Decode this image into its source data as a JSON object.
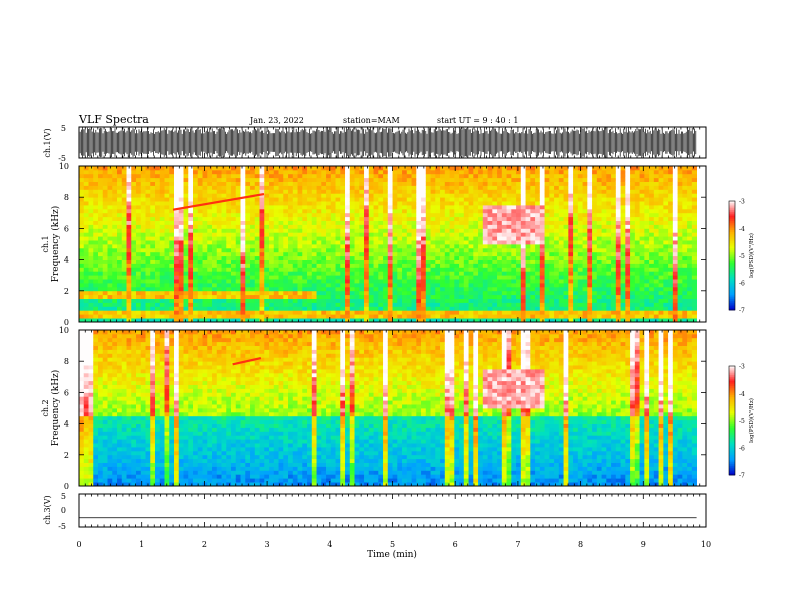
{
  "header": {
    "title": "VLF Spectra",
    "date": "Jan. 23, 2022",
    "station": "station=MAM",
    "start": "start  UT =  9 : 40 : 1"
  },
  "chart_data": [
    {
      "type": "line",
      "panel": "ch1-waveform",
      "ylabel": "ch.1(V)",
      "ylim": [
        -5,
        5
      ],
      "yticks": [
        "5",
        "-5"
      ],
      "note": "dense impulsive signal filling full range"
    },
    {
      "type": "heatmap",
      "panel": "ch1-spectrogram",
      "ylabel_top": "ch.1",
      "ylabel": "Frequency (kHz)",
      "ylim": [
        0,
        10
      ],
      "yticks": [
        "0",
        "2",
        "4",
        "6",
        "8",
        "10"
      ],
      "colorbar": {
        "label": "log(PSD)(V²/Hz)",
        "range": [
          -7,
          -3
        ],
        "ticks": [
          "-3",
          "-4",
          "-5",
          "-6",
          "-7"
        ]
      },
      "features": [
        {
          "name": "rising tone",
          "t_start_min": 1.5,
          "t_end_min": 2.95,
          "f_start_khz": 7.2,
          "f_end_khz": 8.2
        },
        {
          "name": "intense emission",
          "t_start_min": 6.45,
          "t_end_min": 7.45,
          "f_low_khz": 5.0,
          "f_high_khz": 7.5
        },
        {
          "name": "2 kHz band",
          "t_start_min": 0,
          "t_end_min": 3.8,
          "f_khz": 1.8
        },
        {
          "name": "low-frequency line",
          "t_start_min": 0,
          "t_end_min": 9.85,
          "f_khz": 0.5
        }
      ]
    },
    {
      "type": "heatmap",
      "panel": "ch2-spectrogram",
      "ylabel_top": "ch.2",
      "ylabel": "Frequency (kHz)",
      "ylim": [
        0,
        10
      ],
      "yticks": [
        "0",
        "2",
        "4",
        "6",
        "8",
        "10"
      ],
      "colorbar": {
        "label": "log(PSD)(V²/Hz)",
        "range": [
          -7,
          -3
        ],
        "ticks": [
          "-3",
          "-4",
          "-5",
          "-6",
          "-7"
        ]
      },
      "features": [
        {
          "name": "rising tone",
          "t_start_min": 2.45,
          "t_end_min": 2.9,
          "f_start_khz": 7.8,
          "f_end_khz": 8.2
        },
        {
          "name": "intense emission",
          "t_start_min": 6.45,
          "t_end_min": 7.45,
          "f_low_khz": 5.0,
          "f_high_khz": 7.5
        }
      ]
    },
    {
      "type": "line",
      "panel": "ch3-waveform",
      "ylabel": "ch.3(V)",
      "ylim": [
        -5,
        5
      ],
      "yticks": [
        "5",
        "0",
        "-5"
      ],
      "x": [
        0,
        9.85
      ],
      "y": [
        -2.2,
        -2.2
      ]
    }
  ],
  "xaxis": {
    "label": "Time (min)",
    "range": [
      0,
      10
    ],
    "ticks": [
      "0",
      "1",
      "2",
      "3",
      "4",
      "5",
      "6",
      "7",
      "8",
      "9",
      "10"
    ]
  },
  "colors": {
    "colormap": [
      "#0000c8",
      "#00a0ff",
      "#00e0c0",
      "#30ff30",
      "#e8ff00",
      "#ffb000",
      "#ff2020",
      "#ffffff"
    ]
  }
}
